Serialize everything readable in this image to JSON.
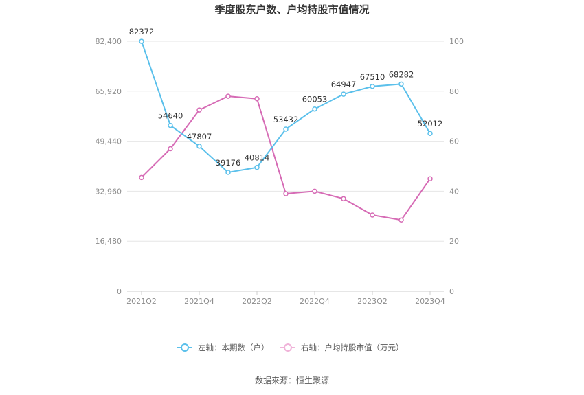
{
  "chart_data": {
    "type": "line",
    "title": "季度股东户数、户均持股市值情况",
    "x": [
      "2021Q2",
      "2021Q3",
      "2021Q4",
      "2022Q1",
      "2022Q2",
      "2022Q3",
      "2022Q4",
      "2023Q1",
      "2023Q2",
      "2023Q3",
      "2023Q4"
    ],
    "x_tick_labels": [
      "2021Q2",
      "2021Q4",
      "2022Q2",
      "2022Q4",
      "2023Q2",
      "2023Q4"
    ],
    "y_left": {
      "ticks": [
        "0",
        "16,480",
        "32,960",
        "49,440",
        "65,920",
        "82,400"
      ],
      "range": [
        0,
        82400
      ]
    },
    "y_right": {
      "ticks": [
        "0",
        "20",
        "40",
        "60",
        "80",
        "100"
      ],
      "range": [
        0,
        100
      ]
    },
    "series": [
      {
        "name": "左轴：本期数（户）",
        "axis": "left",
        "color": "#5bc0eb",
        "values": [
          82372,
          54640,
          47807,
          39176,
          40814,
          53432,
          60053,
          64947,
          67510,
          68282,
          52012
        ],
        "labels": [
          "82372",
          "54640",
          "47807",
          "39176",
          "40814",
          "53432",
          "60053",
          "64947",
          "67510",
          "68282",
          "52012"
        ]
      },
      {
        "name": "右轴：户均持股市值（万元）",
        "axis": "right",
        "color": "#d66bb5",
        "values": [
          45.5,
          57.0,
          72.5,
          78.0,
          77.0,
          39.0,
          40.0,
          37.0,
          30.5,
          28.5,
          45.0
        ]
      }
    ],
    "grid": true,
    "legend_position": "bottom"
  },
  "source": "数据来源：恒生聚源"
}
